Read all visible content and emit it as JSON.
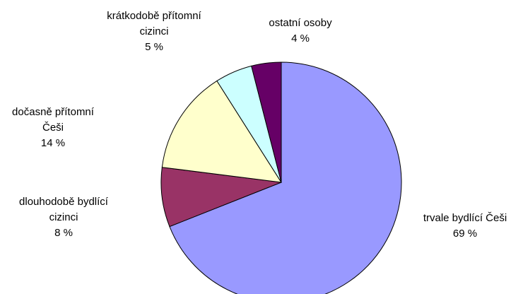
{
  "chart_data": {
    "type": "pie",
    "categories": [
      "trvale bydlící Češi",
      "dlouhodobě bydlící cizinci",
      "dočasně přítomní Češi",
      "krátkodobě přítomní cizinci",
      "ostatní osoby"
    ],
    "values": [
      69,
      8,
      14,
      5,
      4
    ],
    "value_labels": [
      "69 %",
      "8 %",
      "14 %",
      "5 %",
      "4 %"
    ],
    "colors": [
      "#9999ff",
      "#993366",
      "#ffffcc",
      "#ccffff",
      "#660066"
    ]
  }
}
